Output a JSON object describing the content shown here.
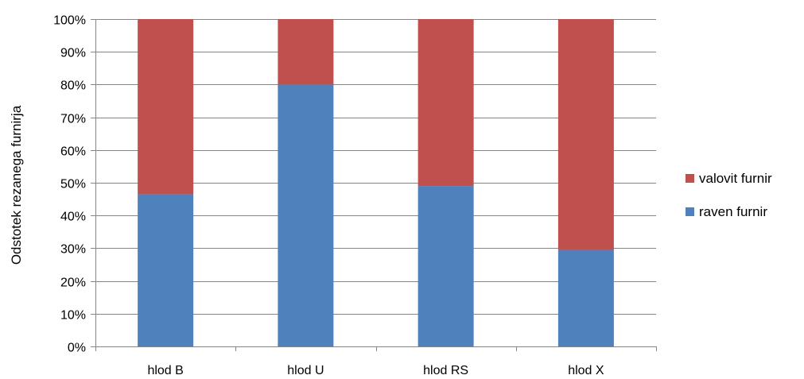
{
  "chart_data": {
    "type": "bar",
    "stacked": true,
    "categories": [
      "hlod B",
      "hlod U",
      "hlod RS",
      "hlod X"
    ],
    "series": [
      {
        "name": "raven furnir",
        "color": "#4F81BD",
        "values": [
          46.5,
          80,
          49,
          29.5
        ]
      },
      {
        "name": "valovit furnir",
        "color": "#C0504D",
        "values": [
          53.5,
          20,
          51,
          70.5
        ]
      }
    ],
    "ylabel": "Odstotek rezanega furnirja",
    "xlabel": "",
    "ylim": [
      0,
      100
    ],
    "y_ticks": [
      "0%",
      "10%",
      "20%",
      "30%",
      "40%",
      "50%",
      "60%",
      "70%",
      "80%",
      "90%",
      "100%"
    ],
    "grid": true,
    "legend_position": "right",
    "legend_order": [
      "valovit furnir",
      "raven furnir"
    ]
  }
}
